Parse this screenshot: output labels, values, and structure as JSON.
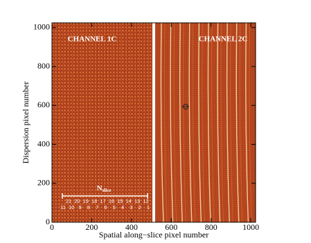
{
  "chart_data": {
    "type": "image",
    "xlabel": "Spatial along−slice pixel number",
    "ylabel": "Dispersion pixel number",
    "xlim": [
      0,
      1024
    ],
    "ylim": [
      0,
      1024
    ],
    "xticks": [
      0,
      200,
      400,
      600,
      800,
      1000
    ],
    "yticks": [
      0,
      200,
      400,
      600,
      800,
      1000
    ],
    "annotations": [
      "CHANNEL 1C",
      "CHANNEL 2C"
    ],
    "slice_label": {
      "main": "N",
      "sub": "slice"
    },
    "slices_top": [
      21,
      20,
      19,
      18,
      17,
      16,
      15,
      14,
      13,
      12
    ],
    "slices_bottom": [
      11,
      10,
      9,
      8,
      7,
      6,
      5,
      4,
      3,
      2,
      1
    ]
  }
}
